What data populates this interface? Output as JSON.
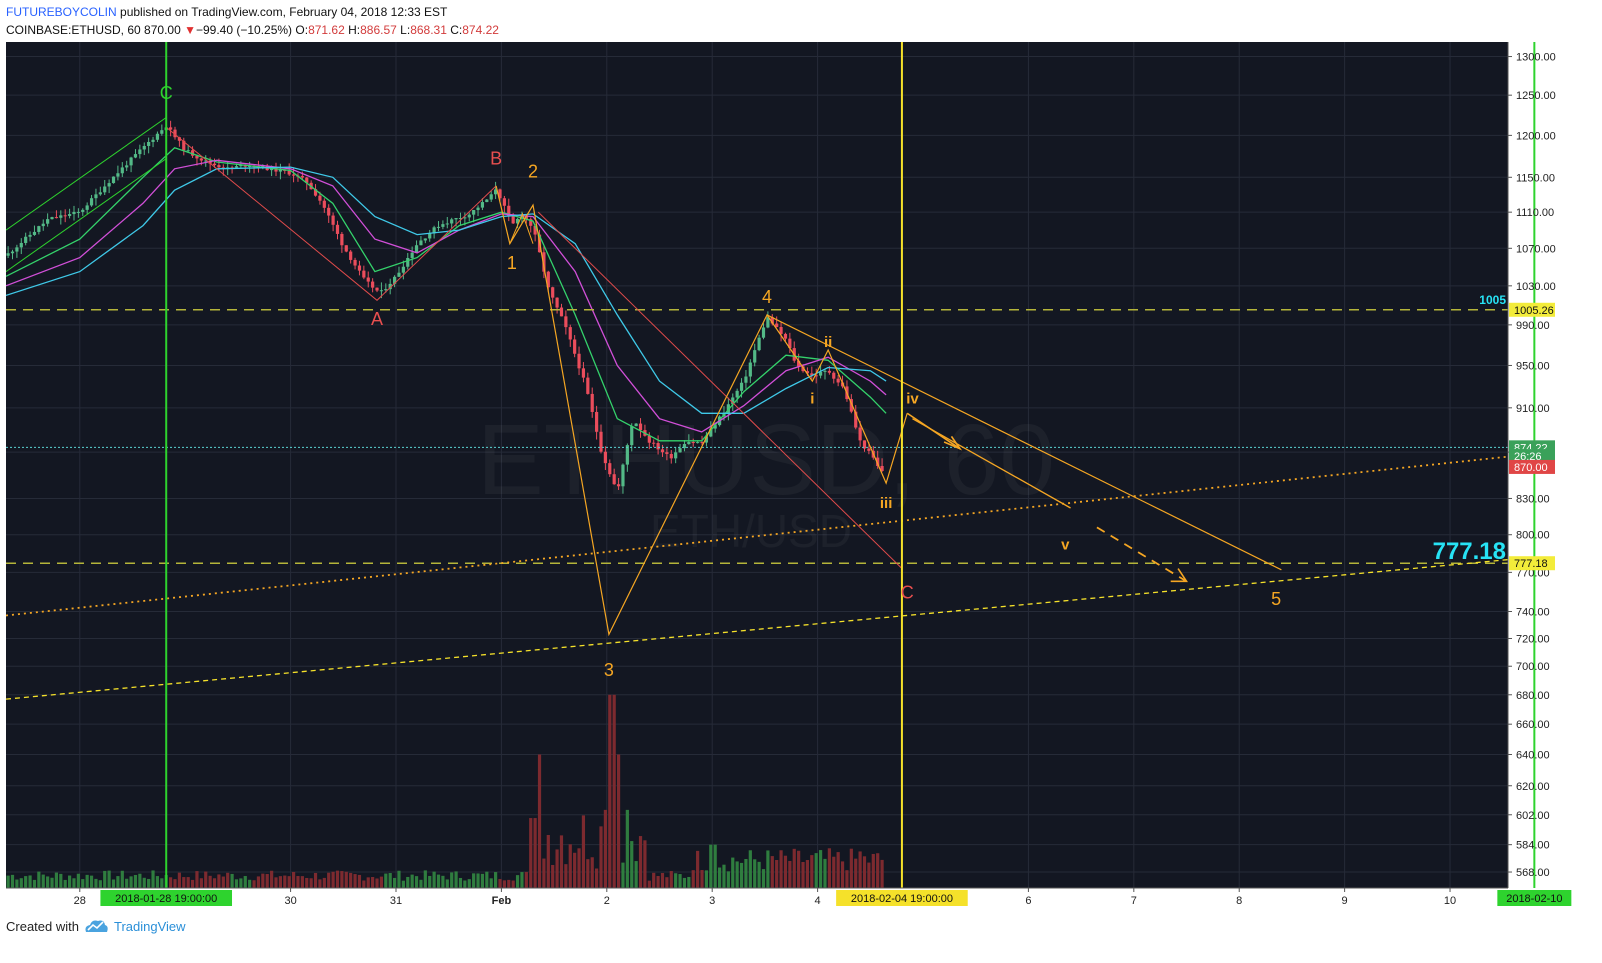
{
  "header": {
    "author": "FUTUREBOYCOLIN",
    "published": "published on TradingView.com, February 04, 2018 12:33 EST",
    "symbol": "COINBASE:ETHUSD, 60",
    "last": "870.00",
    "change": "−99.40 (−10.25%)",
    "o_label": "O:",
    "o_val": "871.62",
    "h_label": "H:",
    "h_val": "886.57",
    "l_label": "L:",
    "l_val": "868.31",
    "c_label": "C:",
    "c_val": "874.22"
  },
  "footer": {
    "created": "Created with",
    "brand": "TradingView"
  },
  "watermark": {
    "line1": "ETHUSD, 60",
    "line2": "ETH/USD"
  },
  "colors": {
    "background": "#131722",
    "grid": "#262b38",
    "up": "#53b987",
    "down": "#eb4d5c",
    "green_line": "#2ed32e",
    "yellow_line": "#f5e12a",
    "orange": "#f5a623",
    "red_label": "#e84f4f",
    "cyan": "#27e3f5"
  },
  "chart_data": {
    "type": "candlestick",
    "symbol": "COINBASE:ETHUSD",
    "interval": "60",
    "y_scale": "log",
    "ylim": [
      560,
      1310
    ],
    "y_ticks": [
      568,
      584,
      602,
      620,
      640,
      660,
      680,
      700,
      720,
      740,
      770,
      800,
      830,
      870,
      910,
      950,
      990,
      1030,
      1070,
      1110,
      1150,
      1200,
      1250,
      1300
    ],
    "y_tick_labels": [
      "568.00",
      "584.00",
      "602.00",
      "620.00",
      "640.00",
      "660.00",
      "680.00",
      "700.00",
      "720.00",
      "740.00",
      "770.00",
      "800.00",
      "830.00",
      "870.00",
      "910.00",
      "950.00",
      "990.00",
      "1030.00",
      "1070.00",
      "1110.00",
      "1150.00",
      "1200.00",
      "1250.00",
      "1300.00"
    ],
    "x_ticks": [
      {
        "label": "28",
        "d": -1.8
      },
      {
        "label": "30",
        "d": 0.2
      },
      {
        "label": "31",
        "d": 1.2
      },
      {
        "label": "Feb",
        "d": 2.2
      },
      {
        "label": "2",
        "d": 3.2
      },
      {
        "label": "3",
        "d": 4.2
      },
      {
        "label": "4",
        "d": 5.2
      },
      {
        "label": "6",
        "d": 7.2
      },
      {
        "label": "7",
        "d": 8.2
      },
      {
        "label": "8",
        "d": 9.2
      },
      {
        "label": "9",
        "d": 10.2
      },
      {
        "label": "10",
        "d": 11.2
      }
    ],
    "x_range": [
      -2.5,
      11.75
    ],
    "price_path": [
      [
        -2.5,
        1062
      ],
      [
        -2.1,
        1102
      ],
      [
        -1.8,
        1110
      ],
      [
        -1.5,
        1148
      ],
      [
        -1.2,
        1185
      ],
      [
        -0.98,
        1212
      ],
      [
        -0.8,
        1182
      ],
      [
        -0.6,
        1168
      ],
      [
        -0.4,
        1160
      ],
      [
        -0.2,
        1165
      ],
      [
        0.0,
        1160
      ],
      [
        0.2,
        1155
      ],
      [
        0.35,
        1145
      ],
      [
        0.5,
        1120
      ],
      [
        0.7,
        1072
      ],
      [
        0.9,
        1036
      ],
      [
        1.05,
        1022
      ],
      [
        1.2,
        1040
      ],
      [
        1.4,
        1075
      ],
      [
        1.6,
        1095
      ],
      [
        1.75,
        1102
      ],
      [
        1.9,
        1108
      ],
      [
        2.1,
        1128
      ],
      [
        2.15,
        1138
      ],
      [
        2.3,
        1095
      ],
      [
        2.4,
        1108
      ],
      [
        2.5,
        1092
      ],
      [
        2.65,
        1025
      ],
      [
        2.8,
        990
      ],
      [
        3.0,
        930
      ],
      [
        3.15,
        870
      ],
      [
        3.3,
        835
      ],
      [
        3.45,
        900
      ],
      [
        3.6,
        880
      ],
      [
        3.8,
        865
      ],
      [
        3.95,
        880
      ],
      [
        4.1,
        878
      ],
      [
        4.3,
        905
      ],
      [
        4.5,
        935
      ],
      [
        4.72,
        998
      ],
      [
        4.9,
        975
      ],
      [
        5.0,
        950
      ],
      [
        5.15,
        940
      ],
      [
        5.3,
        945
      ],
      [
        5.45,
        928
      ],
      [
        5.6,
        880
      ],
      [
        5.75,
        862
      ],
      [
        5.8,
        850
      ],
      [
        5.85,
        866
      ]
    ],
    "ma_lines": [
      {
        "name": "green",
        "color": "#34d26b",
        "path": [
          [
            -2.5,
            1040
          ],
          [
            -1.8,
            1080
          ],
          [
            -1.2,
            1150
          ],
          [
            -0.9,
            1185
          ],
          [
            -0.5,
            1168
          ],
          [
            0.2,
            1158
          ],
          [
            0.6,
            1120
          ],
          [
            1.0,
            1045
          ],
          [
            1.4,
            1060
          ],
          [
            1.8,
            1095
          ],
          [
            2.2,
            1110
          ],
          [
            2.5,
            1100
          ],
          [
            2.9,
            1000
          ],
          [
            3.3,
            900
          ],
          [
            3.7,
            880
          ],
          [
            4.1,
            880
          ],
          [
            4.5,
            925
          ],
          [
            4.9,
            960
          ],
          [
            5.3,
            955
          ],
          [
            5.7,
            920
          ],
          [
            5.85,
            905
          ]
        ]
      },
      {
        "name": "magenta",
        "color": "#d14fd8",
        "path": [
          [
            -2.5,
            1030
          ],
          [
            -1.8,
            1060
          ],
          [
            -1.2,
            1120
          ],
          [
            -0.9,
            1160
          ],
          [
            -0.5,
            1170
          ],
          [
            0.2,
            1160
          ],
          [
            0.6,
            1140
          ],
          [
            1.0,
            1080
          ],
          [
            1.4,
            1065
          ],
          [
            1.8,
            1090
          ],
          [
            2.2,
            1108
          ],
          [
            2.5,
            1105
          ],
          [
            2.9,
            1045
          ],
          [
            3.3,
            950
          ],
          [
            3.7,
            900
          ],
          [
            4.1,
            888
          ],
          [
            4.5,
            912
          ],
          [
            4.9,
            945
          ],
          [
            5.3,
            958
          ],
          [
            5.7,
            935
          ],
          [
            5.85,
            922
          ]
        ]
      },
      {
        "name": "cyan",
        "color": "#3fc9e8",
        "path": [
          [
            -2.5,
            1020
          ],
          [
            -1.8,
            1045
          ],
          [
            -1.2,
            1095
          ],
          [
            -0.9,
            1135
          ],
          [
            -0.5,
            1160
          ],
          [
            0.2,
            1162
          ],
          [
            0.6,
            1150
          ],
          [
            1.0,
            1105
          ],
          [
            1.4,
            1085
          ],
          [
            1.8,
            1090
          ],
          [
            2.2,
            1105
          ],
          [
            2.5,
            1108
          ],
          [
            2.9,
            1075
          ],
          [
            3.3,
            1000
          ],
          [
            3.7,
            935
          ],
          [
            4.1,
            905
          ],
          [
            4.5,
            905
          ],
          [
            4.9,
            928
          ],
          [
            5.3,
            948
          ],
          [
            5.7,
            945
          ],
          [
            5.85,
            935
          ]
        ]
      }
    ],
    "volume_spikes": [
      [
        3.2,
        605
      ],
      [
        3.25,
        680
      ],
      [
        3.3,
        640
      ],
      [
        3.4,
        605
      ],
      [
        2.5,
        600
      ],
      [
        2.55,
        640
      ],
      [
        4.2,
        584
      ],
      [
        5.6,
        580
      ]
    ],
    "horizontal_lines": [
      {
        "price": 1005.26,
        "label": "1005",
        "axis_label": "1005.26",
        "color": "#b5b53a",
        "style": "dashed"
      },
      {
        "price": 777.18,
        "label": "777.18",
        "axis_label": "777.18",
        "color": "#b5b53a",
        "style": "dashed"
      },
      {
        "price": 874.22,
        "axis_label": "874.22",
        "color": "#5ad1d1",
        "style": "dotted"
      }
    ],
    "axis_badges": [
      {
        "price": 874.22,
        "text": "874.22",
        "bg": "#3aa15a"
      },
      {
        "price": 866.5,
        "text": "26:26",
        "bg": "#3aa15a"
      },
      {
        "price": 857,
        "text": "870.00",
        "bg": "#e04646"
      },
      {
        "price": 1005.26,
        "text": "1005.26",
        "bg": "#f3ec3a"
      },
      {
        "price": 777.18,
        "text": "777.18",
        "bg": "#f3ec3a"
      }
    ],
    "vertical_lines": [
      {
        "d": -0.98,
        "color": "#2ed32e",
        "label": "2018-01-28 19:00:00"
      },
      {
        "d": 6.0,
        "color": "#f5e12a",
        "label": "2018-02-04 19:00:00"
      },
      {
        "d": 12.0,
        "color": "#2ed32e",
        "label": "2018-02-10"
      }
    ],
    "wave_labels": [
      {
        "text": "C",
        "d": -0.98,
        "p": 1245,
        "color": "#2ed32e",
        "size": 18
      },
      {
        "text": "A",
        "d": 1.02,
        "p": 990,
        "color": "#e84f4f",
        "size": 18
      },
      {
        "text": "B",
        "d": 2.15,
        "p": 1165,
        "color": "#e84f4f",
        "size": 18
      },
      {
        "text": "2",
        "d": 2.5,
        "p": 1150,
        "color": "#f5a623",
        "size": 18
      },
      {
        "text": "1",
        "d": 2.3,
        "p": 1048,
        "color": "#f5a623",
        "size": 18
      },
      {
        "text": "4",
        "d": 4.72,
        "p": 1012,
        "color": "#f5a623",
        "size": 18
      },
      {
        "text": "ii",
        "d": 5.3,
        "p": 968,
        "color": "#f5a623",
        "size": 15
      },
      {
        "text": "i",
        "d": 5.15,
        "p": 914,
        "color": "#f5a623",
        "size": 15
      },
      {
        "text": "iv",
        "d": 6.1,
        "p": 914,
        "color": "#f5a623",
        "size": 15
      },
      {
        "text": "iii",
        "d": 5.85,
        "p": 822,
        "color": "#f5a623",
        "size": 15
      },
      {
        "text": "v",
        "d": 7.55,
        "p": 788,
        "color": "#f5a623",
        "size": 15
      },
      {
        "text": "3",
        "d": 3.22,
        "p": 693,
        "color": "#f5a623",
        "size": 18
      },
      {
        "text": "C",
        "d": 6.05,
        "p": 750,
        "color": "#e84f4f",
        "size": 18
      },
      {
        "text": "5",
        "d": 9.55,
        "p": 745,
        "color": "#f5a623",
        "size": 18
      }
    ]
  }
}
